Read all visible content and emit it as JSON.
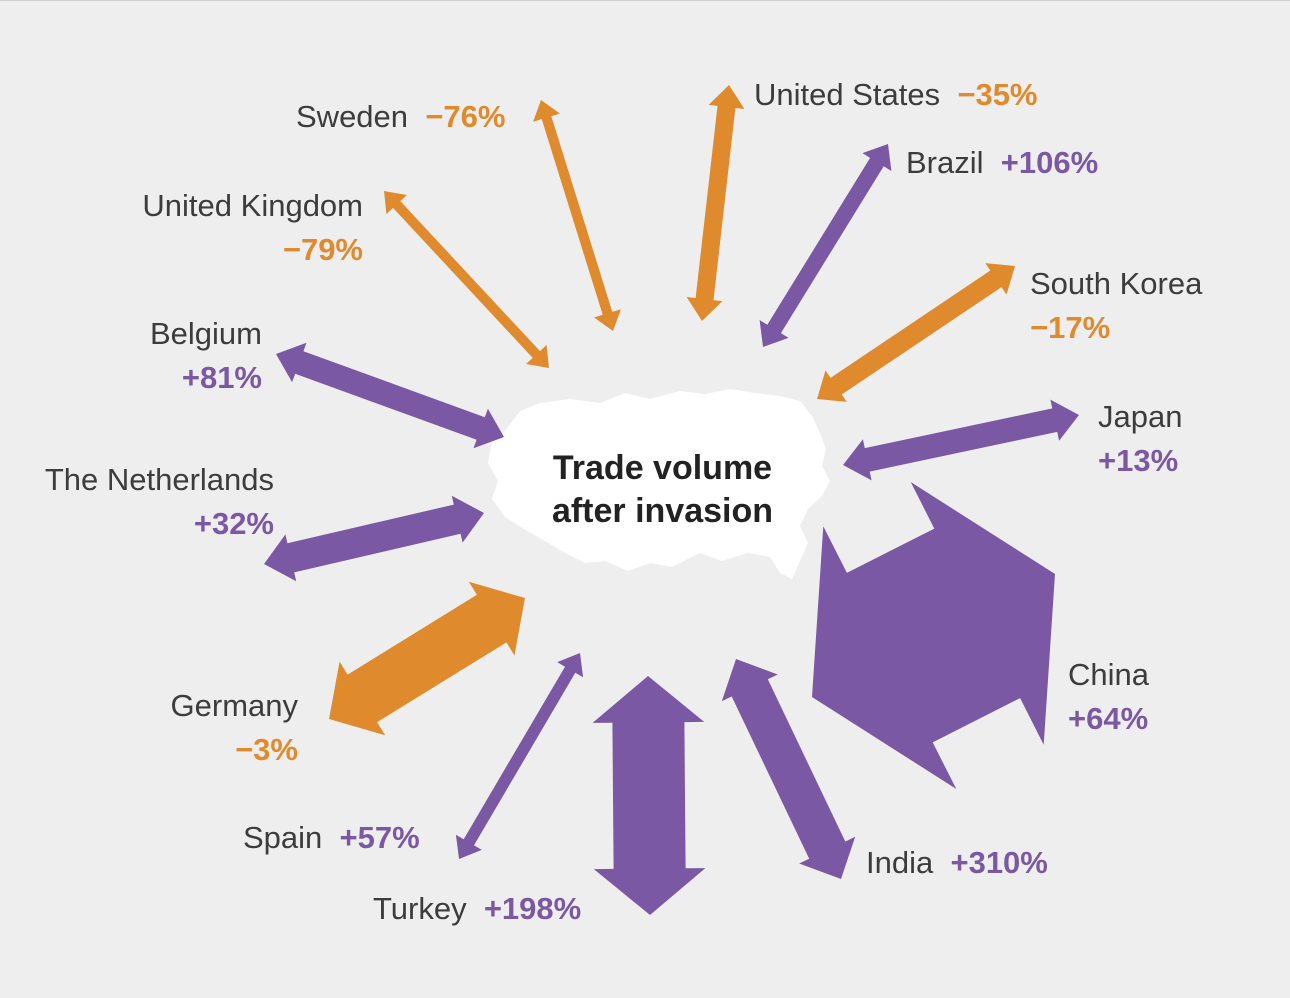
{
  "center_title": {
    "line1": "Trade volume",
    "line2": "after invasion"
  },
  "colors": {
    "decrease": "#e08a2e",
    "increase": "#7b58a4",
    "map": "#ffffff",
    "background": "#efeeef"
  },
  "partners": [
    {
      "id": "sweden",
      "name": "Sweden",
      "change": "−76%",
      "value": -76,
      "direction": "decrease"
    },
    {
      "id": "united-states",
      "name": "United States",
      "change": "−35%",
      "value": -35,
      "direction": "decrease"
    },
    {
      "id": "brazil",
      "name": "Brazil",
      "change": "+106%",
      "value": 106,
      "direction": "increase"
    },
    {
      "id": "united-kingdom",
      "name": "United Kingdom",
      "change": "−79%",
      "value": -79,
      "direction": "decrease"
    },
    {
      "id": "south-korea",
      "name": "South Korea",
      "change": "−17%",
      "value": -17,
      "direction": "decrease"
    },
    {
      "id": "belgium",
      "name": "Belgium",
      "change": "+81%",
      "value": 81,
      "direction": "increase"
    },
    {
      "id": "japan",
      "name": "Japan",
      "change": "+13%",
      "value": 13,
      "direction": "increase"
    },
    {
      "id": "the-netherlands",
      "name": "The Netherlands",
      "change": "+32%",
      "value": 32,
      "direction": "increase"
    },
    {
      "id": "china",
      "name": "China",
      "change": "+64%",
      "value": 64,
      "direction": "increase"
    },
    {
      "id": "germany",
      "name": "Germany",
      "change": "−3%",
      "value": -3,
      "direction": "decrease"
    },
    {
      "id": "spain",
      "name": "Spain",
      "change": "+57%",
      "value": 57,
      "direction": "increase"
    },
    {
      "id": "india",
      "name": "India",
      "change": "+310%",
      "value": 310,
      "direction": "increase"
    },
    {
      "id": "turkey",
      "name": "Turkey",
      "change": "+198%",
      "value": 198,
      "direction": "increase"
    }
  ]
}
